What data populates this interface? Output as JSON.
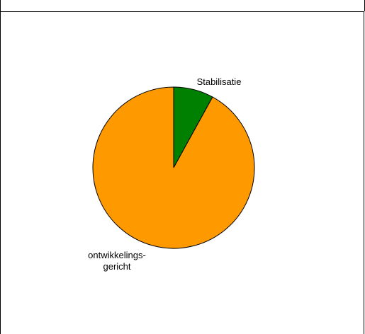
{
  "chart_data": {
    "type": "pie",
    "title": "",
    "slices": [
      {
        "label": "Stabilisatie",
        "label_lines": [
          "Stabilisatie"
        ],
        "value": 8,
        "color": "#008000"
      },
      {
        "label": "ontwikkelings-gericht",
        "label_lines": [
          "ontwikkelings-",
          "gericht"
        ],
        "value": 92,
        "color": "#FF9900"
      }
    ],
    "legend": "none",
    "edge_color": "#000000"
  }
}
